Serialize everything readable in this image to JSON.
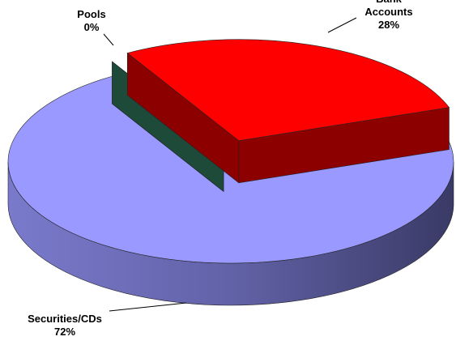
{
  "chart_data": {
    "type": "pie",
    "categories": [
      "Pools",
      "Bank Accounts",
      "Securities/CDs"
    ],
    "values": [
      0,
      28,
      72
    ],
    "value_labels": [
      "0%",
      "28%",
      "72%"
    ],
    "colors": [
      "#1e4a3a",
      "#ff0000",
      "#9999ff"
    ]
  }
}
